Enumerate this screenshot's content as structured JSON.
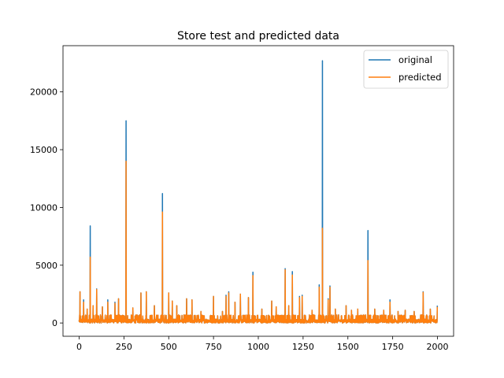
{
  "chart_data": {
    "type": "line",
    "title": "Store test and predicted data",
    "xlabel": "",
    "ylabel": "",
    "xlim": [
      -90,
      2090
    ],
    "ylim": [
      -1150,
      24000
    ],
    "xticks": [
      0,
      250,
      500,
      750,
      1000,
      1250,
      1500,
      1750,
      2000
    ],
    "yticks": [
      0,
      5000,
      10000,
      15000,
      20000
    ],
    "grid": false,
    "legend": "top-right",
    "n_points": 2000,
    "baseline_max": 700,
    "series": [
      {
        "name": "original",
        "color": "#1f77b4",
        "spikes": [
          [
            5,
            2700
          ],
          [
            25,
            2000
          ],
          [
            45,
            1200
          ],
          [
            62,
            8400
          ],
          [
            78,
            1500
          ],
          [
            98,
            2950
          ],
          [
            130,
            1400
          ],
          [
            160,
            2000
          ],
          [
            200,
            1800
          ],
          [
            220,
            2100
          ],
          [
            262,
            17500
          ],
          [
            300,
            1300
          ],
          [
            345,
            2600
          ],
          [
            375,
            2700
          ],
          [
            420,
            1500
          ],
          [
            465,
            11200
          ],
          [
            500,
            2600
          ],
          [
            520,
            1900
          ],
          [
            545,
            1500
          ],
          [
            600,
            2100
          ],
          [
            630,
            2000
          ],
          [
            680,
            1000
          ],
          [
            750,
            2300
          ],
          [
            800,
            1000
          ],
          [
            820,
            2400
          ],
          [
            835,
            2700
          ],
          [
            870,
            1800
          ],
          [
            900,
            2500
          ],
          [
            945,
            2200
          ],
          [
            970,
            4400
          ],
          [
            1020,
            1200
          ],
          [
            1075,
            1900
          ],
          [
            1100,
            1400
          ],
          [
            1150,
            4700
          ],
          [
            1170,
            1500
          ],
          [
            1190,
            4450
          ],
          [
            1230,
            2300
          ],
          [
            1245,
            2400
          ],
          [
            1300,
            1100
          ],
          [
            1340,
            3300
          ],
          [
            1358,
            22700
          ],
          [
            1390,
            2100
          ],
          [
            1400,
            3200
          ],
          [
            1430,
            1200
          ],
          [
            1490,
            1500
          ],
          [
            1520,
            1100
          ],
          [
            1555,
            1200
          ],
          [
            1612,
            8000
          ],
          [
            1650,
            1200
          ],
          [
            1700,
            1100
          ],
          [
            1735,
            2000
          ],
          [
            1780,
            1000
          ],
          [
            1820,
            1100
          ],
          [
            1870,
            1000
          ],
          [
            1920,
            2700
          ],
          [
            1960,
            1200
          ],
          [
            2000,
            1500
          ]
        ]
      },
      {
        "name": "predicted",
        "color": "#ff7f0e",
        "spikes": [
          [
            5,
            2700
          ],
          [
            25,
            1800
          ],
          [
            45,
            1200
          ],
          [
            62,
            5700
          ],
          [
            78,
            1500
          ],
          [
            98,
            2900
          ],
          [
            130,
            1400
          ],
          [
            160,
            1800
          ],
          [
            200,
            1700
          ],
          [
            220,
            2100
          ],
          [
            262,
            14000
          ],
          [
            300,
            1300
          ],
          [
            345,
            2600
          ],
          [
            375,
            2700
          ],
          [
            420,
            1500
          ],
          [
            465,
            9600
          ],
          [
            500,
            2600
          ],
          [
            520,
            1900
          ],
          [
            545,
            1500
          ],
          [
            600,
            2100
          ],
          [
            630,
            2000
          ],
          [
            680,
            1000
          ],
          [
            750,
            2300
          ],
          [
            800,
            1000
          ],
          [
            820,
            2300
          ],
          [
            835,
            2600
          ],
          [
            870,
            1800
          ],
          [
            900,
            2500
          ],
          [
            945,
            2200
          ],
          [
            970,
            4100
          ],
          [
            1020,
            1200
          ],
          [
            1075,
            1900
          ],
          [
            1100,
            1400
          ],
          [
            1150,
            4600
          ],
          [
            1170,
            1500
          ],
          [
            1190,
            4150
          ],
          [
            1230,
            2200
          ],
          [
            1245,
            2300
          ],
          [
            1300,
            1100
          ],
          [
            1340,
            3100
          ],
          [
            1358,
            8200
          ],
          [
            1390,
            2000
          ],
          [
            1400,
            3100
          ],
          [
            1430,
            1200
          ],
          [
            1490,
            1500
          ],
          [
            1520,
            1100
          ],
          [
            1555,
            1200
          ],
          [
            1612,
            5400
          ],
          [
            1650,
            1200
          ],
          [
            1700,
            1100
          ],
          [
            1735,
            1800
          ],
          [
            1780,
            1000
          ],
          [
            1820,
            1100
          ],
          [
            1870,
            1000
          ],
          [
            1920,
            2650
          ],
          [
            1960,
            1200
          ],
          [
            2000,
            1400
          ]
        ]
      }
    ]
  }
}
